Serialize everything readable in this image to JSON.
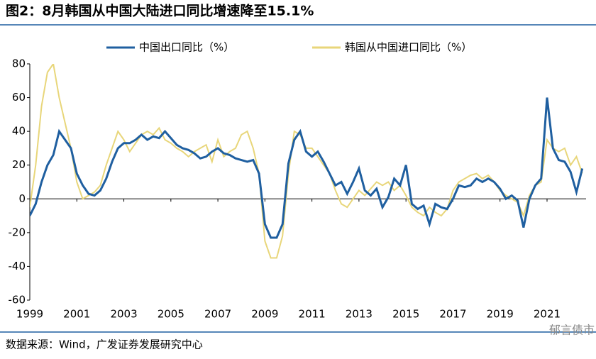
{
  "chart_data": {
    "type": "line",
    "title": "图2：8月韩国从中国大陆进口同比增速降至15.1%",
    "source": "数据来源：Wind，广发证券发展研究中心",
    "watermark": "郁言债市",
    "x": [
      1999,
      1999.25,
      1999.5,
      1999.75,
      2000,
      2000.25,
      2000.5,
      2000.75,
      2001,
      2001.25,
      2001.5,
      2001.75,
      2002,
      2002.25,
      2002.5,
      2002.75,
      2003,
      2003.25,
      2003.5,
      2003.75,
      2004,
      2004.25,
      2004.5,
      2004.75,
      2005,
      2005.25,
      2005.5,
      2005.75,
      2006,
      2006.25,
      2006.5,
      2006.75,
      2007,
      2007.25,
      2007.5,
      2007.75,
      2008,
      2008.25,
      2008.5,
      2008.75,
      2009,
      2009.25,
      2009.5,
      2009.75,
      2010,
      2010.25,
      2010.5,
      2010.75,
      2011,
      2011.25,
      2011.5,
      2011.75,
      2012,
      2012.25,
      2012.5,
      2012.75,
      2013,
      2013.25,
      2013.5,
      2013.75,
      2014,
      2014.25,
      2014.5,
      2014.75,
      2015,
      2015.25,
      2015.5,
      2015.75,
      2016,
      2016.25,
      2016.5,
      2016.75,
      2017,
      2017.25,
      2017.5,
      2017.75,
      2018,
      2018.25,
      2018.5,
      2018.75,
      2019,
      2019.25,
      2019.5,
      2019.75,
      2020,
      2020.25,
      2020.5,
      2020.75,
      2021,
      2021.25,
      2021.5,
      2021.75,
      2022,
      2022.25,
      2022.5
    ],
    "series": [
      {
        "name": "中国出口同比（%）",
        "color": "#1f5fa0",
        "values": [
          -10,
          -3,
          10,
          20,
          26,
          40,
          35,
          30,
          15,
          8,
          3,
          2,
          5,
          12,
          22,
          30,
          33,
          33,
          35,
          38,
          35,
          37,
          36,
          40,
          36,
          32,
          30,
          29,
          27,
          24,
          25,
          28,
          30,
          27,
          26,
          24,
          23,
          22,
          23,
          15,
          -15,
          -23,
          -23,
          -15,
          21,
          35,
          40,
          28,
          25,
          28,
          22,
          15,
          8,
          10,
          3,
          10,
          18,
          5,
          2,
          6,
          -5,
          1,
          12,
          8,
          20,
          -3,
          -6,
          -4,
          -15,
          -3,
          -5,
          -6,
          0,
          8,
          7,
          8,
          12,
          10,
          12,
          10,
          6,
          0,
          2,
          -1,
          -17,
          0,
          8,
          12,
          60,
          30,
          23,
          22,
          16,
          4,
          18
        ]
      },
      {
        "name": "韩国从中国进口同比（%）",
        "color": "#e8d67a",
        "values": [
          -5,
          20,
          55,
          75,
          80,
          60,
          45,
          30,
          10,
          0,
          2,
          4,
          8,
          20,
          30,
          40,
          35,
          28,
          33,
          38,
          40,
          38,
          42,
          35,
          33,
          30,
          28,
          25,
          28,
          30,
          32,
          22,
          35,
          25,
          28,
          30,
          38,
          40,
          30,
          15,
          -25,
          -35,
          -35,
          -22,
          15,
          40,
          38,
          30,
          30,
          25,
          20,
          15,
          5,
          -3,
          -5,
          0,
          5,
          2,
          6,
          10,
          8,
          10,
          5,
          8,
          2,
          -5,
          -8,
          -10,
          -5,
          -8,
          -10,
          -6,
          5,
          10,
          12,
          14,
          15,
          12,
          14,
          10,
          5,
          2,
          0,
          -2,
          -10,
          2,
          8,
          10,
          35,
          30,
          28,
          30,
          20,
          25,
          15.1
        ]
      }
    ],
    "xlim": [
      1999,
      2022.66
    ],
    "xticks": [
      1999,
      2001,
      2003,
      2005,
      2007,
      2009,
      2011,
      2013,
      2015,
      2017,
      2019,
      2021
    ],
    "ylim": [
      -60,
      80
    ],
    "yticks": [
      -60,
      -40,
      -20,
      0,
      20,
      40,
      60,
      80
    ]
  }
}
